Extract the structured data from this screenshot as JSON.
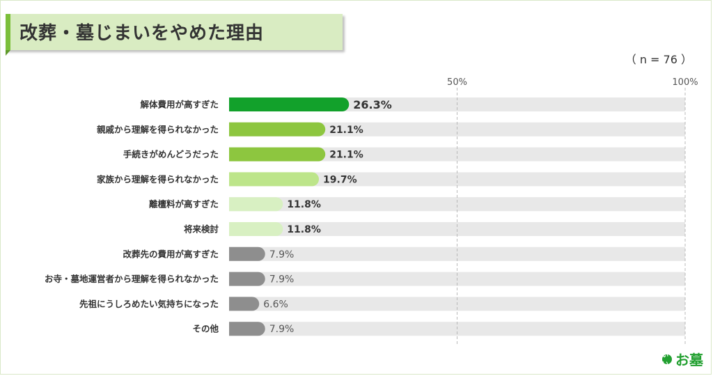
{
  "header": {
    "title": "改葬・墓じまいをやめた理由",
    "n_label": "（ n = 76 ）"
  },
  "logo": {
    "mark": "いい",
    "text": "お墓"
  },
  "colors": {
    "top1": "#12a12b",
    "top2": "#8dc63f",
    "top3": "#bde58a",
    "top4": "#d8f0c2",
    "other": "#8e8e8e",
    "track": "#e8e8e8"
  },
  "chart_data": {
    "type": "bar",
    "orientation": "horizontal",
    "categories": [
      "解体費用が高すぎた",
      "親戚から理解を得られなかった",
      "手続きがめんどうだった",
      "家族から理解を得られなかった",
      "離檀料が高すぎた",
      "将来検討",
      "改葬先の費用が高すぎた",
      "お寺・墓地運営者から理解を得られなかった",
      "先祖にうしろめたい気持ちになった",
      "その他"
    ],
    "values": [
      26.3,
      21.1,
      21.1,
      19.7,
      11.8,
      11.8,
      7.9,
      7.9,
      6.6,
      7.9
    ],
    "value_labels": [
      "26.3%",
      "21.1%",
      "21.1%",
      "19.7%",
      "11.8%",
      "11.8%",
      "7.9%",
      "7.9%",
      "6.6%",
      "7.9%"
    ],
    "color_keys": [
      "top1",
      "top2",
      "top2",
      "top3",
      "top4",
      "top4",
      "other",
      "other",
      "other",
      "other"
    ],
    "xlim": [
      0,
      100
    ],
    "ticks": [
      {
        "value": 50,
        "label": "50%"
      },
      {
        "value": 100,
        "label": "100%"
      }
    ],
    "grid": "dashed at ticks"
  }
}
